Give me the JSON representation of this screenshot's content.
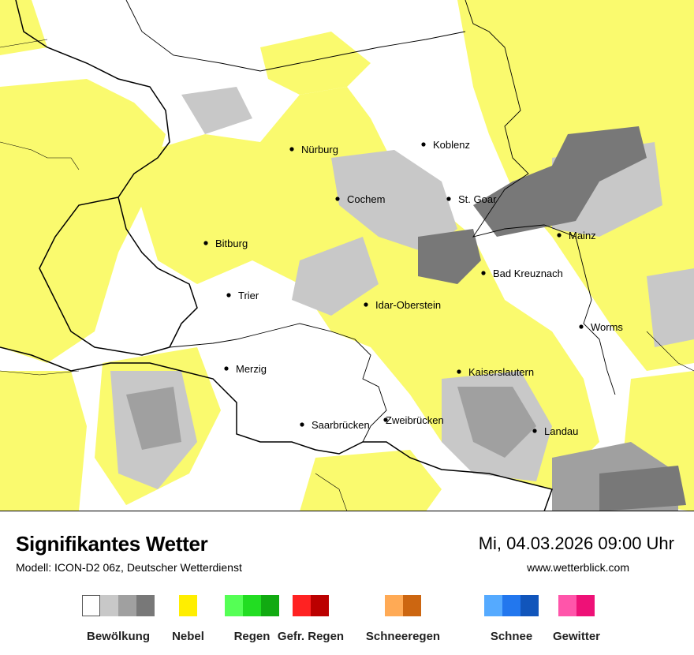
{
  "map": {
    "cities": [
      {
        "name": "Nürburg"
      },
      {
        "name": "Koblenz"
      },
      {
        "name": "Cochem"
      },
      {
        "name": "St. Goar"
      },
      {
        "name": "Bitburg"
      },
      {
        "name": "Mainz"
      },
      {
        "name": "Bad Kreuznach"
      },
      {
        "name": "Trier"
      },
      {
        "name": "Idar-Oberstein"
      },
      {
        "name": "Worms"
      },
      {
        "name": "Merzig"
      },
      {
        "name": "Kaiserslautern"
      },
      {
        "name": "Saarbrücken"
      },
      {
        "name": "Zweibrücken"
      },
      {
        "name": "Landau"
      }
    ],
    "colors": {
      "fog": "#fafa6e",
      "cloud_light": "#c8c8c8",
      "cloud_mid": "#a0a0a0",
      "cloud_dark": "#787878"
    }
  },
  "footer": {
    "title": "Signifikantes Wetter",
    "model": "Modell: ICON-D2 06z, Deutscher Wetterdienst",
    "datetime": "Mi, 04.03.2026 09:00 Uhr",
    "website": "www.wetterblick.com"
  },
  "legend": [
    {
      "label": "Bewölkung",
      "colors": [
        "#ffffff",
        "#c8c8c8",
        "#a0a0a0",
        "#787878"
      ]
    },
    {
      "label": "Nebel",
      "colors": [
        "#ffee00"
      ]
    },
    {
      "label": "Regen",
      "colors": [
        "#55ff55",
        "#22dd22",
        "#11aa11"
      ]
    },
    {
      "label": "Gefr. Regen",
      "colors": [
        "#ff2222",
        "#bb0000"
      ]
    },
    {
      "label": "Schneeregen",
      "colors": [
        "#ffaa55",
        "#cc6611"
      ]
    },
    {
      "label": "Schnee",
      "colors": [
        "#55aaff",
        "#2277ee",
        "#1155bb"
      ]
    },
    {
      "label": "Gewitter",
      "colors": [
        "#ff55aa",
        "#ee1177"
      ]
    }
  ]
}
